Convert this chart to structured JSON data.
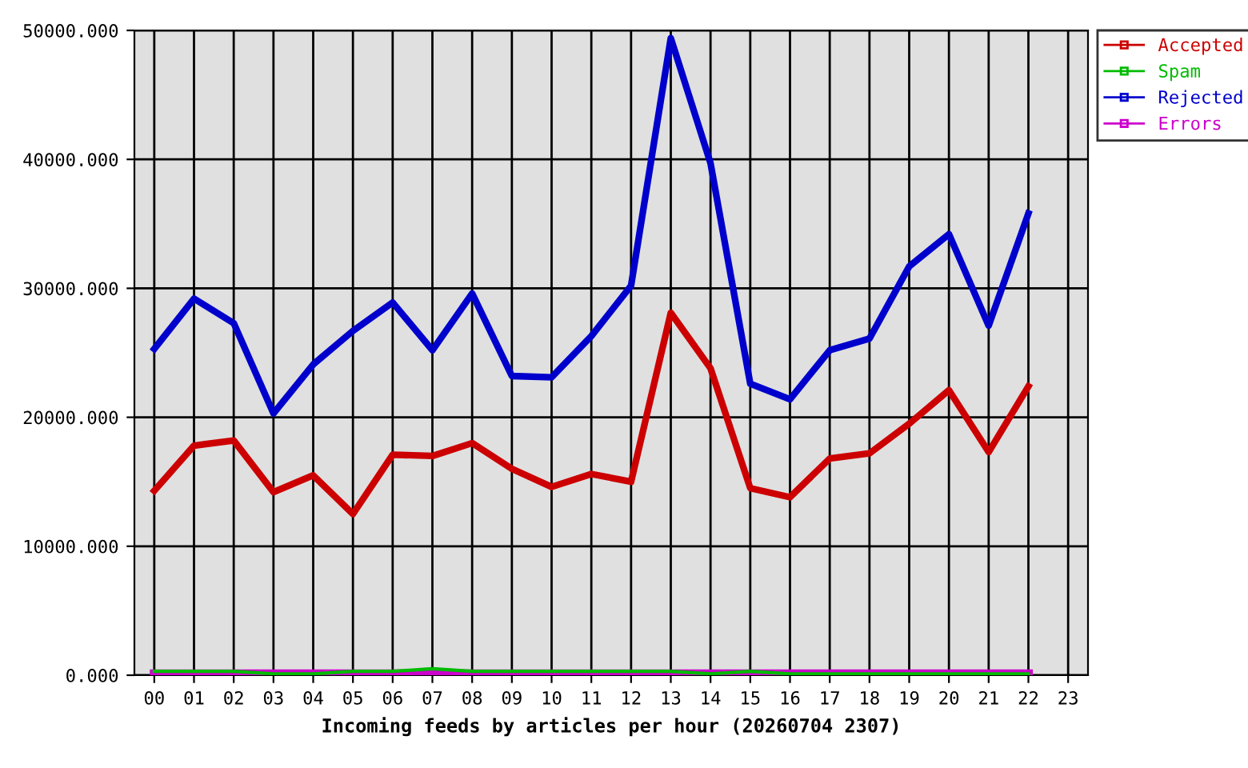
{
  "chart_data": {
    "type": "line",
    "xlabel": "Incoming feeds by articles per hour (20260704 2307)",
    "categories": [
      "00",
      "01",
      "02",
      "03",
      "04",
      "05",
      "06",
      "07",
      "08",
      "09",
      "10",
      "11",
      "12",
      "13",
      "14",
      "15",
      "16",
      "17",
      "18",
      "19",
      "20",
      "21",
      "22",
      "23"
    ],
    "series": [
      {
        "name": "Accepted",
        "color": "#cc0000",
        "values": [
          14300,
          17800,
          18200,
          14200,
          15500,
          12500,
          17100,
          17000,
          18000,
          16000,
          14600,
          15600,
          15000,
          28100,
          23800,
          14500,
          13800,
          16800,
          17200,
          19500,
          22100,
          17300,
          22400,
          null
        ]
      },
      {
        "name": "Spam",
        "color": "#00bb00",
        "values": [
          300,
          300,
          300,
          100,
          100,
          300,
          300,
          500,
          300,
          300,
          300,
          300,
          300,
          300,
          100,
          300,
          100,
          100,
          100,
          100,
          100,
          100,
          100,
          null
        ]
      },
      {
        "name": "Rejected",
        "color": "#0000cc",
        "values": [
          25300,
          29200,
          27300,
          20300,
          24100,
          26700,
          28900,
          25200,
          29600,
          23200,
          23100,
          26300,
          30200,
          49400,
          39700,
          22600,
          21400,
          25200,
          26100,
          31700,
          34200,
          27100,
          35800,
          null
        ]
      },
      {
        "name": "Errors",
        "color": "#cc00cc",
        "values": [
          100,
          100,
          100,
          100,
          100,
          100,
          100,
          100,
          100,
          100,
          100,
          100,
          100,
          100,
          100,
          100,
          100,
          100,
          100,
          100,
          100,
          100,
          100,
          null
        ]
      }
    ],
    "ylim": [
      0,
      50000
    ],
    "yticks": [
      {
        "value": 0,
        "label": "0.000"
      },
      {
        "value": 10000,
        "label": "10000.000"
      },
      {
        "value": 20000,
        "label": "20000.000"
      },
      {
        "value": 30000,
        "label": "30000.000"
      },
      {
        "value": 40000,
        "label": "40000.000"
      },
      {
        "value": 50000,
        "label": "50000.000"
      }
    ],
    "grid": true,
    "legend": "top right"
  }
}
